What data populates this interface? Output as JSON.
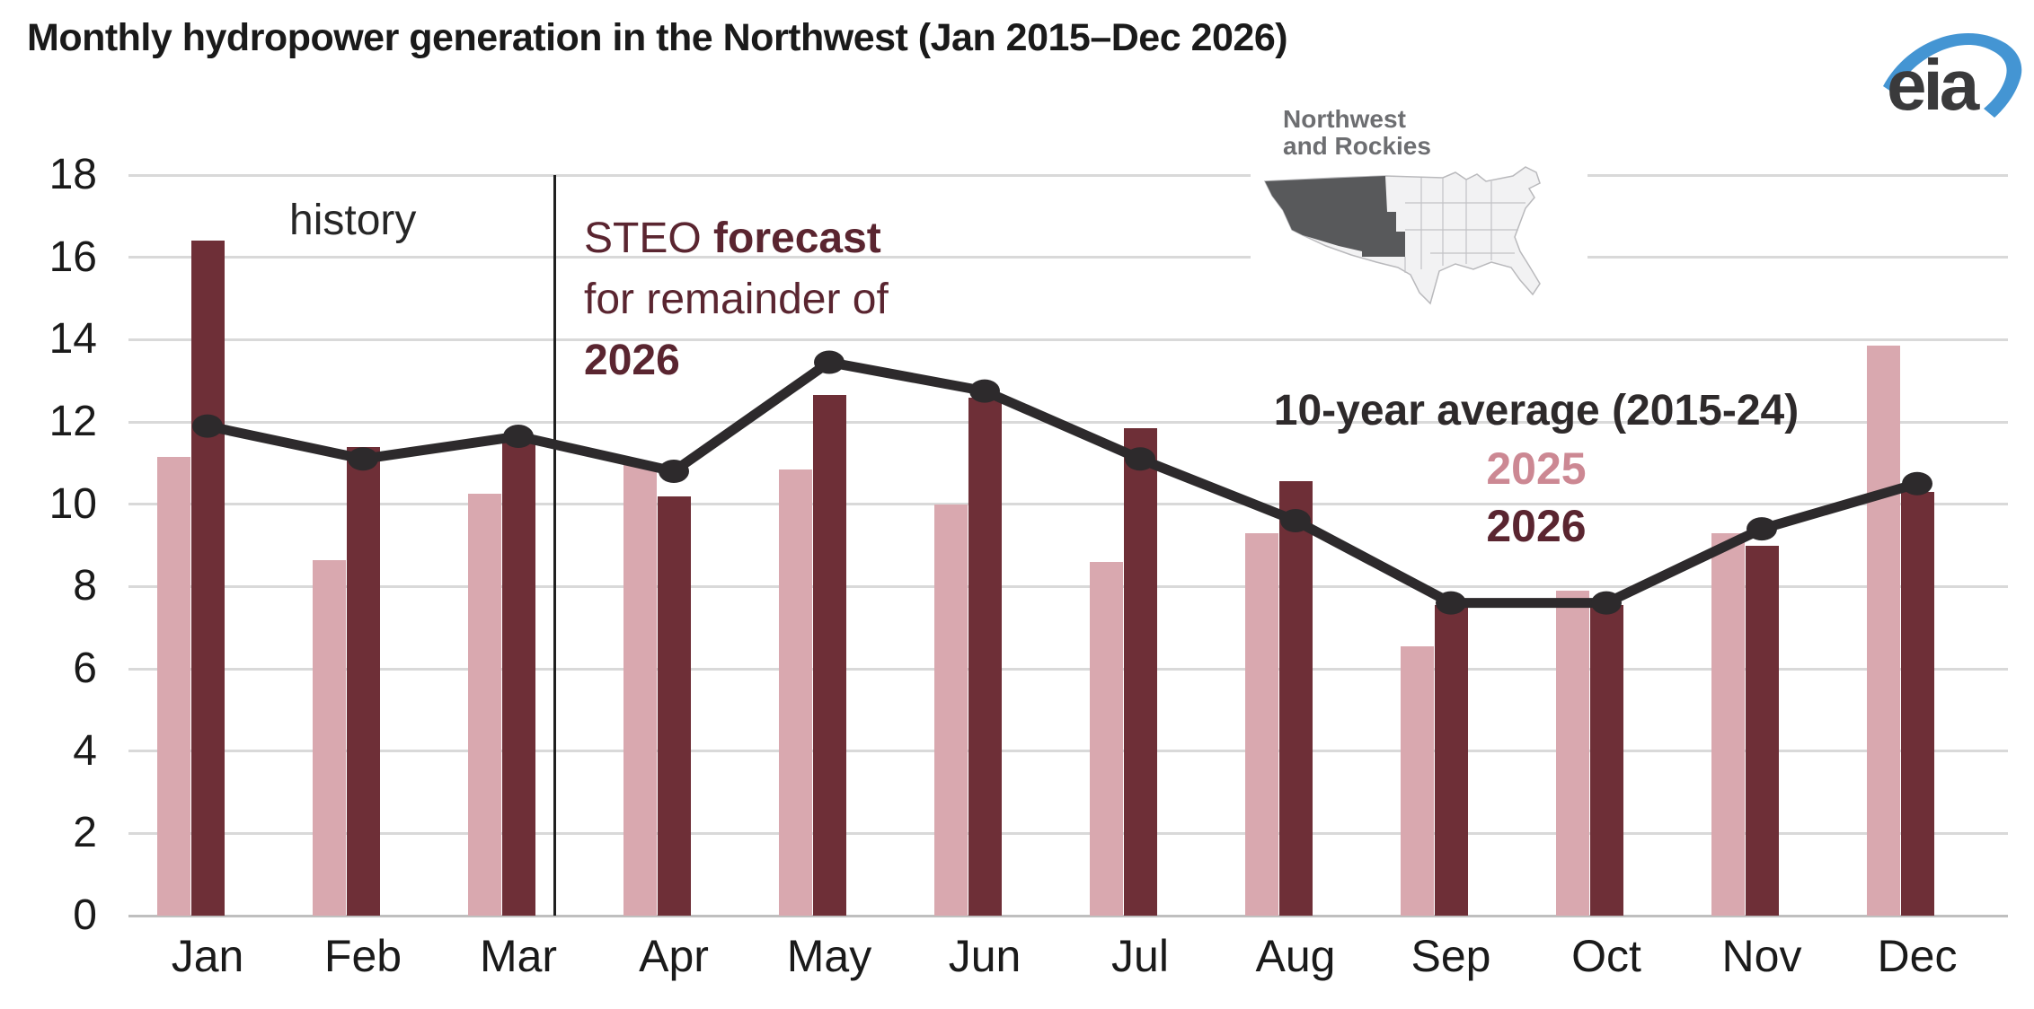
{
  "header": {
    "title": "Monthly hydropower generation in the Northwest (Jan 2015–Dec 2026)",
    "logo_text": "eia"
  },
  "map_inset": {
    "label_line1": "Northwest",
    "label_line2": "and Rockies"
  },
  "annotations": {
    "history": "history",
    "steo_prefix": "STEO ",
    "steo_bold": "forecast",
    "steo_line2": "for remainder of",
    "steo_line3": "2026"
  },
  "legend": {
    "avg": "10-year average (2015-24)",
    "y2025": "2025",
    "y2026": "2026"
  },
  "colors": {
    "text_dark": "#1a1a1a",
    "history_text": "#262626",
    "forecast_text": "#5a2530",
    "legend_avg_text": "#2e2a2b",
    "legend_2025_text": "#cc8893",
    "legend_2026_text": "#5a2530",
    "bar2025": "#d9a8af",
    "bar2026": "#6e2f37",
    "line": "#2d2a2c",
    "gridline": "#d9d9d9",
    "axis_line": "#bfbfbf",
    "divider": "#1f1f1f",
    "map_highlight": "#58595b",
    "map_land": "#f2f2f3",
    "map_border": "#b9b9bc",
    "map_label": "#6d6e71",
    "eia_blue": "#4495d3",
    "eia_text": "#3a3a3b"
  },
  "chart_data": {
    "type": "bar",
    "title": "Monthly hydropower generation in the Northwest (Jan 2015–Dec 2026)",
    "xlabel": "",
    "ylabel": "",
    "ylim": [
      0,
      18
    ],
    "ytick_step": 2,
    "grid": true,
    "legend_position": "center-right",
    "divider_after_index": 2,
    "categories": [
      "Jan",
      "Feb",
      "Mar",
      "Apr",
      "May",
      "Jun",
      "Jul",
      "Aug",
      "Sep",
      "Oct",
      "Nov",
      "Dec"
    ],
    "series": [
      {
        "name": "2025",
        "type": "bar",
        "color_key": "bar2025",
        "values": [
          11.15,
          8.65,
          10.25,
          11.0,
          10.85,
          10.0,
          8.6,
          9.3,
          6.55,
          7.9,
          9.3,
          13.85
        ]
      },
      {
        "name": "2026",
        "type": "bar",
        "color_key": "bar2026",
        "values": [
          16.4,
          11.4,
          11.5,
          10.2,
          12.65,
          12.6,
          11.85,
          10.55,
          7.55,
          7.55,
          9.0,
          10.3
        ]
      },
      {
        "name": "10-year average (2015-24)",
        "type": "line",
        "color_key": "line",
        "values": [
          11.9,
          11.1,
          11.65,
          10.8,
          13.45,
          12.75,
          11.1,
          9.6,
          7.6,
          7.6,
          9.4,
          10.5
        ]
      }
    ]
  }
}
